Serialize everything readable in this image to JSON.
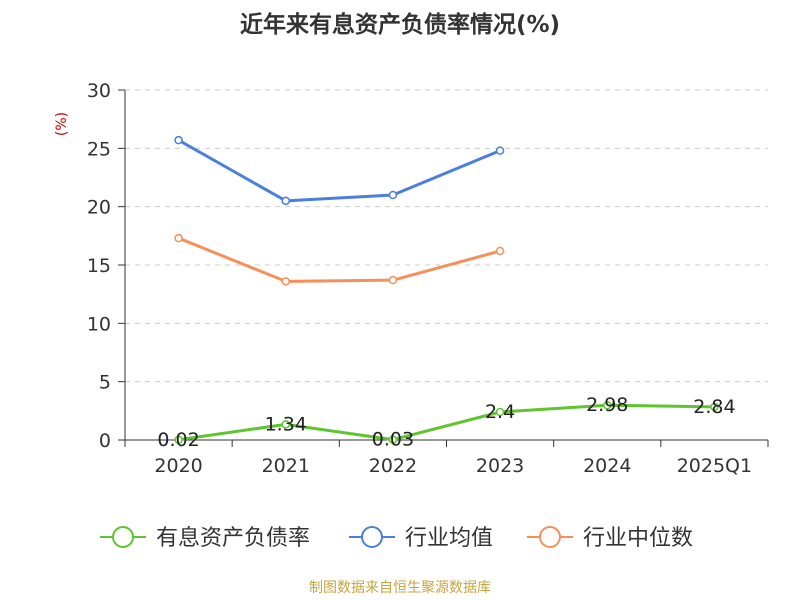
{
  "chart_data": {
    "type": "line",
    "title": "近年来有息资产负债率情况(%)",
    "ylabel": "(%)",
    "xlabel": "",
    "categories": [
      "2020",
      "2021",
      "2022",
      "2023",
      "2024",
      "2025Q1"
    ],
    "y_ticks": [
      "0",
      "5",
      "10",
      "15",
      "20",
      "25",
      "30"
    ],
    "ylim": [
      0,
      30
    ],
    "grid": true,
    "legend_position": "bottom",
    "series": [
      {
        "name": "有息资产负债率",
        "color": "#5fc52e",
        "values": [
          0.02,
          1.34,
          0.03,
          2.4,
          2.98,
          2.84
        ],
        "labels": [
          "0.02",
          "1.34",
          "0.03",
          "2.4",
          "2.98",
          "2.84"
        ]
      },
      {
        "name": "行业均值",
        "color": "#4a7fdb",
        "values": [
          25.7,
          20.5,
          21.0,
          24.8,
          null,
          null
        ]
      },
      {
        "name": "行业中位数",
        "color": "#f78f5a",
        "values": [
          17.3,
          13.6,
          13.7,
          16.2,
          null,
          null
        ]
      }
    ],
    "source": "制图数据来自恒生聚源数据库"
  }
}
